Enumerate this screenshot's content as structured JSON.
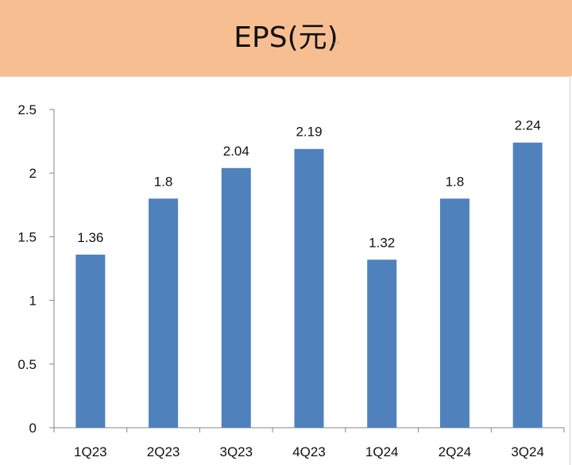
{
  "chart_data": {
    "type": "bar",
    "title": "EPS(元)",
    "categories": [
      "1Q23",
      "2Q23",
      "3Q23",
      "4Q23",
      "1Q24",
      "2Q24",
      "3Q24"
    ],
    "series": [
      {
        "values": [
          1.36,
          1.8,
          2.04,
          2.19,
          1.32,
          1.8,
          2.24
        ],
        "data_labels": [
          "1.36",
          "1.8",
          "2.04",
          "2.19",
          "1.32",
          "1.8",
          "2.24"
        ]
      }
    ],
    "ylim": [
      0,
      2.5
    ],
    "yticks": [
      0,
      0.5,
      1,
      1.5,
      2,
      2.5
    ],
    "ytick_labels": [
      "0",
      "0.5",
      "1",
      "1.5",
      "2",
      "2.5"
    ],
    "grid": false,
    "legend": "none",
    "colors": {
      "bar": "#4f81bd",
      "title_band": "#f7bf91",
      "axis": "#868686"
    }
  }
}
